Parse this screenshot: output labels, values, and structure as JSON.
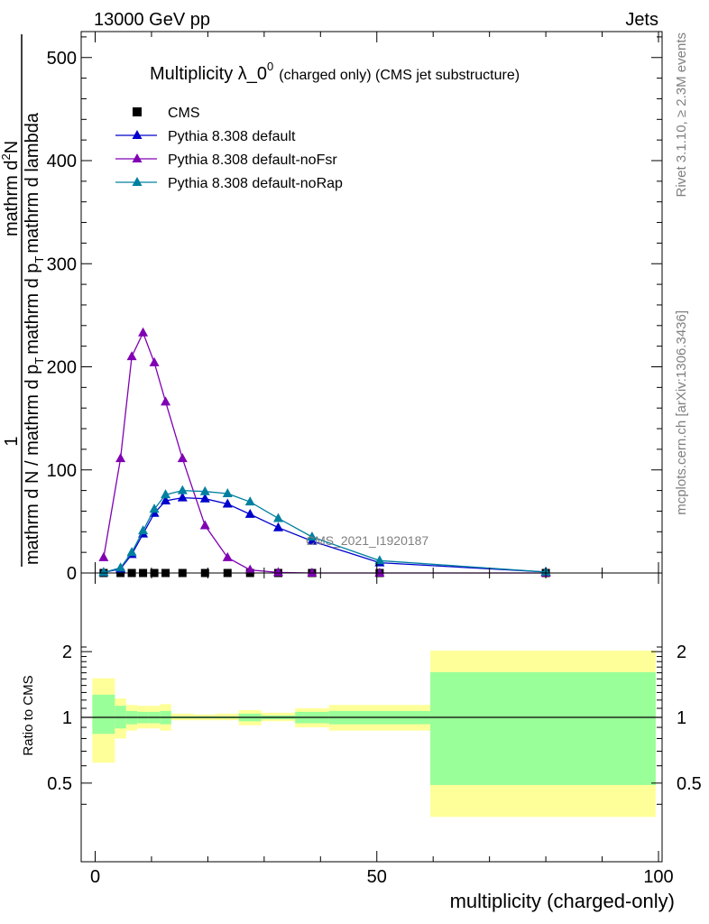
{
  "header": {
    "left": "13000 GeV pp",
    "right": "Jets"
  },
  "side": {
    "rivet": "Rivet 3.1.10, ≥ 2.3M events",
    "mcplots": "mcplots.cern.ch [arXiv:1306.3436]"
  },
  "chart_data": [
    {
      "type": "line",
      "title": "Multiplicity λ_0",
      "title_superscript": "0",
      "subtitle": "(charged only) (CMS jet substructure)",
      "watermark": "CMS_2021_I1920187",
      "ylabel": {
        "numerator_one": "1",
        "denominator_one": "mathrm d N / mathrm d p",
        "denominator_sub": "T",
        "denominator_two": "mathrm d p",
        "denominator_sub2": "T",
        "numerator_two": "mathrm d",
        "numerator_sup": "2",
        "numerator_rest": "N",
        "denominator_three": "mathrm d lambda"
      },
      "ylim": [
        0,
        525
      ],
      "xlim": [
        -2,
        100
      ],
      "yticks": [
        0,
        100,
        200,
        300,
        400,
        500
      ],
      "ytick_labels": [
        "0",
        "100",
        "200",
        "300",
        "400",
        "500"
      ],
      "legend_position": "top-left",
      "series": [
        {
          "name": "CMS",
          "color": "#000000",
          "marker": "square",
          "x": [
            1.5,
            4.5,
            6.5,
            8.5,
            10.5,
            12.5,
            15.5,
            19.5,
            23.5,
            27.5,
            32.5,
            38.5,
            50.5,
            80
          ],
          "y": [
            0,
            0,
            0,
            0,
            0,
            0,
            0,
            0,
            0,
            0,
            0,
            0,
            0,
            0
          ]
        },
        {
          "name": "Pythia 8.308 default",
          "color": "#0000cc",
          "marker": "triangle",
          "x": [
            1.5,
            4.5,
            6.5,
            8.5,
            10.5,
            12.5,
            15.5,
            19.5,
            23.5,
            27.5,
            32.5,
            38.5,
            50.5,
            80
          ],
          "y": [
            0.5,
            4,
            18,
            38,
            58,
            70,
            73,
            72,
            67,
            57,
            44,
            31,
            10,
            1
          ]
        },
        {
          "name": "Pythia 8.308 default-noFsr",
          "color": "#8000b3",
          "marker": "triangle",
          "x": [
            1.5,
            4.5,
            6.5,
            8.5,
            10.5,
            12.5,
            15.5,
            19.5,
            23.5,
            27.5,
            32.5,
            38.5,
            50.5,
            80
          ],
          "y": [
            15,
            111,
            210,
            233,
            204,
            166,
            111,
            46,
            15,
            3,
            0.5,
            0,
            0,
            0
          ]
        },
        {
          "name": "Pythia 8.308 default-noRap",
          "color": "#0080a0",
          "marker": "triangle",
          "x": [
            1.5,
            4.5,
            6.5,
            8.5,
            10.5,
            12.5,
            15.5,
            19.5,
            23.5,
            27.5,
            32.5,
            38.5,
            50.5,
            80
          ],
          "y": [
            0.5,
            5,
            20,
            41,
            62,
            76,
            80,
            79,
            77,
            69,
            53,
            35,
            12,
            1
          ]
        }
      ]
    },
    {
      "type": "area",
      "xlabel": "multiplicity (charged-only)",
      "ylabel": "Ratio to CMS",
      "xlim": [
        -2,
        100
      ],
      "ylim": [
        0.35,
        2.2
      ],
      "xticks": [
        0,
        50,
        100
      ],
      "xtick_labels": [
        "0",
        "50",
        "100"
      ],
      "yticks": [
        0.5,
        1,
        2
      ],
      "ytick_labels": [
        "0.5",
        "1",
        "2"
      ],
      "reference_line": 1,
      "bins": [
        {
          "x0": -0.5,
          "x1": 3.5,
          "stat_lo": 0.84,
          "stat_hi": 1.27,
          "tot_lo": 0.62,
          "tot_hi": 1.51
        },
        {
          "x0": 3.5,
          "x1": 5.5,
          "stat_lo": 0.89,
          "stat_hi": 1.13,
          "tot_lo": 0.8,
          "tot_hi": 1.22
        },
        {
          "x0": 5.5,
          "x1": 7.5,
          "stat_lo": 0.93,
          "stat_hi": 1.07,
          "tot_lo": 0.87,
          "tot_hi": 1.14
        },
        {
          "x0": 7.5,
          "x1": 9.5,
          "stat_lo": 0.94,
          "stat_hi": 1.06,
          "tot_lo": 0.89,
          "tot_hi": 1.13
        },
        {
          "x0": 9.5,
          "x1": 11.5,
          "stat_lo": 0.94,
          "stat_hi": 1.06,
          "tot_lo": 0.89,
          "tot_hi": 1.13
        },
        {
          "x0": 11.5,
          "x1": 13.5,
          "stat_lo": 0.93,
          "stat_hi": 1.07,
          "tot_lo": 0.87,
          "tot_hi": 1.15
        },
        {
          "x0": 13.5,
          "x1": 17.5,
          "stat_lo": 0.99,
          "stat_hi": 1.01,
          "tot_lo": 0.97,
          "tot_hi": 1.04
        },
        {
          "x0": 17.5,
          "x1": 21.5,
          "stat_lo": 0.99,
          "stat_hi": 1.01,
          "tot_lo": 0.97,
          "tot_hi": 1.03
        },
        {
          "x0": 21.5,
          "x1": 25.5,
          "stat_lo": 0.99,
          "stat_hi": 1.01,
          "tot_lo": 0.97,
          "tot_hi": 1.04
        },
        {
          "x0": 25.5,
          "x1": 29.5,
          "stat_lo": 0.96,
          "stat_hi": 1.04,
          "tot_lo": 0.92,
          "tot_hi": 1.08
        },
        {
          "x0": 29.5,
          "x1": 35.5,
          "stat_lo": 0.98,
          "stat_hi": 1.02,
          "tot_lo": 0.96,
          "tot_hi": 1.05
        },
        {
          "x0": 35.5,
          "x1": 41.5,
          "stat_lo": 0.94,
          "stat_hi": 1.06,
          "tot_lo": 0.9,
          "tot_hi": 1.1
        },
        {
          "x0": 41.5,
          "x1": 59.5,
          "stat_lo": 0.93,
          "stat_hi": 1.07,
          "tot_lo": 0.87,
          "tot_hi": 1.14
        },
        {
          "x0": 59.5,
          "x1": 99.5,
          "stat_lo": 0.49,
          "stat_hi": 1.61,
          "tot_lo": 0.35,
          "tot_hi": 2.02
        }
      ]
    }
  ]
}
